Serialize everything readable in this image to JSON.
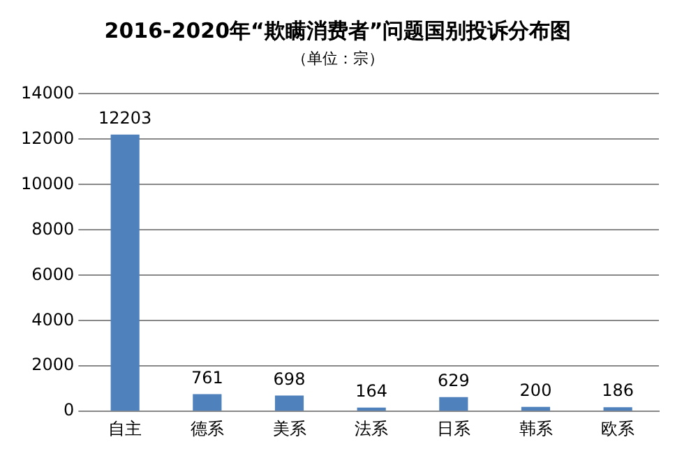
{
  "chart_data": {
    "type": "bar",
    "title": "2016-2020年“欺瞒消费者”问题国别投诉分布图",
    "subtitle": "（单位：宗）",
    "categories": [
      "自主",
      "德系",
      "美系",
      "法系",
      "日系",
      "韩系",
      "欧系"
    ],
    "values": [
      12203,
      761,
      698,
      164,
      629,
      200,
      186
    ],
    "color": "#4f81bd",
    "ylim": [
      0,
      14000
    ],
    "yticks": [
      0,
      2000,
      4000,
      6000,
      8000,
      10000,
      12000,
      14000
    ],
    "grid": "y",
    "data_labels": true,
    "legend": false
  }
}
